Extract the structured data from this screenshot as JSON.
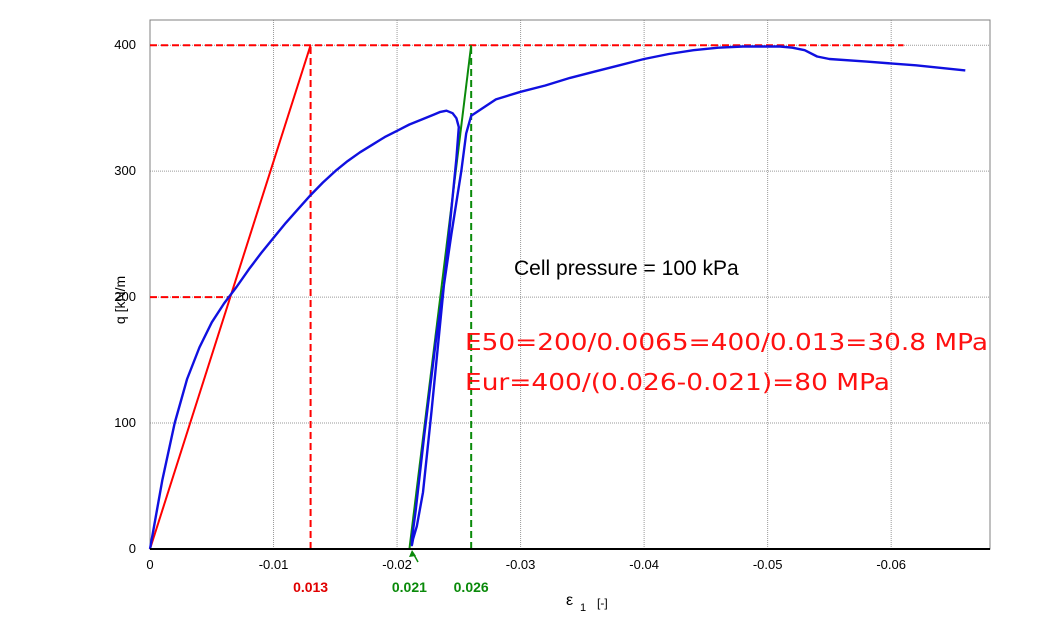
{
  "chart_data": {
    "type": "line",
    "xlabel": "ε",
    "xlabel_subscript": "1",
    "xlabel_unit": "[-]",
    "ylabel": "q [kN/m",
    "xlim": [
      0,
      -0.068
    ],
    "ylim": [
      0,
      420
    ],
    "x_ticks": [
      0,
      -0.01,
      -0.02,
      -0.03,
      -0.04,
      -0.05,
      -0.06
    ],
    "x_tick_labels": [
      "0",
      "-0.01",
      "-0.02",
      "-0.03",
      "-0.04",
      "-0.05",
      "-0.06"
    ],
    "y_ticks": [
      0,
      100,
      200,
      300,
      400
    ],
    "y_tick_labels": [
      "0",
      "100",
      "200",
      "300",
      "400"
    ],
    "grid": true,
    "series": [
      {
        "color": "#1010e0",
        "x": [
          0,
          -0.001,
          -0.002,
          -0.003,
          -0.004,
          -0.005,
          -0.006,
          -0.007,
          -0.008,
          -0.009,
          -0.01,
          -0.011,
          -0.012,
          -0.013,
          -0.014,
          -0.015,
          -0.016,
          -0.017,
          -0.018,
          -0.019,
          -0.02,
          -0.021,
          -0.022,
          -0.023,
          -0.0235,
          -0.024,
          -0.0245,
          -0.0248,
          -0.025,
          -0.0248,
          -0.0243,
          -0.0236,
          -0.0228,
          -0.0221,
          -0.0216,
          -0.0213,
          -0.0212,
          -0.0212,
          -0.0215,
          -0.0222,
          -0.0232,
          -0.0244,
          -0.0252,
          -0.0256,
          -0.026,
          -0.028,
          -0.03,
          -0.032,
          -0.034,
          -0.036,
          -0.038,
          -0.04,
          -0.042,
          -0.044,
          -0.046,
          -0.048,
          -0.05,
          -0.051,
          -0.052,
          -0.053,
          -0.054,
          -0.055,
          -0.058,
          -0.062,
          -0.066
        ],
        "y": [
          0,
          55,
          100,
          135,
          160,
          180,
          195,
          208,
          222,
          235,
          247,
          259,
          270,
          281,
          291,
          300,
          308,
          315,
          321,
          327,
          332,
          337,
          341,
          345,
          347,
          348,
          346,
          342,
          335,
          310,
          260,
          190,
          110,
          45,
          18,
          8,
          3,
          8,
          30,
          90,
          170,
          250,
          300,
          330,
          344,
          357,
          363,
          368,
          374,
          379,
          384,
          389,
          393,
          396,
          398,
          399,
          399,
          399,
          398,
          396,
          391,
          389,
          387,
          384,
          380
        ]
      }
    ],
    "reference_lines": [
      {
        "color": "#ff0000",
        "dash": false,
        "x": [
          0,
          -0.013
        ],
        "y": [
          0,
          400
        ]
      },
      {
        "color": "#ff0000",
        "dash": true,
        "x": [
          0,
          -0.061
        ],
        "y": [
          400,
          400
        ]
      },
      {
        "color": "#ff0000",
        "dash": true,
        "x": [
          0,
          -0.0065
        ],
        "y": [
          200,
          200
        ]
      },
      {
        "color": "#ff0000",
        "dash": true,
        "x": [
          -0.013,
          -0.013
        ],
        "y": [
          0,
          400
        ]
      },
      {
        "color": "#0a8a0a",
        "dash": false,
        "x": [
          -0.021,
          -0.026
        ],
        "y": [
          0,
          400
        ]
      },
      {
        "color": "#0a8a0a",
        "dash": true,
        "x": [
          -0.026,
          -0.026
        ],
        "y": [
          0,
          400
        ]
      }
    ],
    "marker_labels": [
      {
        "x": -0.013,
        "text": "0.013",
        "color": "#e00000"
      },
      {
        "x": -0.021,
        "text": "0.021",
        "color": "#0a8a0a"
      },
      {
        "x": -0.026,
        "text": "0.026",
        "color": "#0a8a0a"
      }
    ],
    "annotations": {
      "cell_pressure": "Cell pressure = 100  kPa",
      "e50": "E50=200/0.0065=400/0.013=30.8 MPa",
      "eur": "Eur=400/(0.026-0.021)=80 MPa"
    }
  }
}
